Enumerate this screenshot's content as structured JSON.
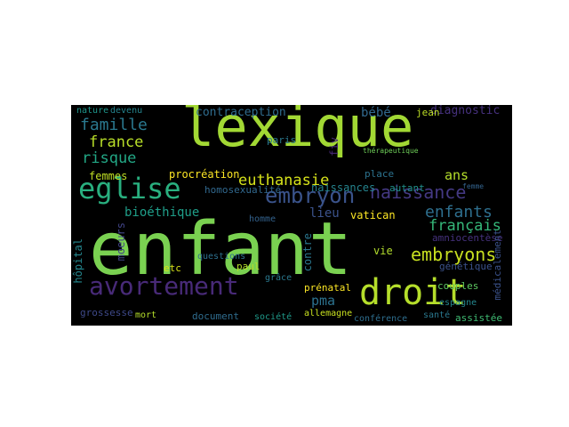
{
  "words": [
    {
      "text": "lexique",
      "color": "#a2d834"
    },
    {
      "text": "enfant",
      "color": "#7ad151"
    },
    {
      "text": "eglise",
      "color": "#29af7f"
    },
    {
      "text": "droit",
      "color": "#b5de2b"
    },
    {
      "text": "avortement",
      "color": "#482a78"
    },
    {
      "text": "embryon",
      "color": "#3a538b"
    },
    {
      "text": "naissance",
      "color": "#443983"
    },
    {
      "text": "euthanasie",
      "color": "#d6e21a"
    },
    {
      "text": "enfants",
      "color": "#2e6f8e"
    },
    {
      "text": "français",
      "color": "#35b779"
    },
    {
      "text": "embryons",
      "color": "#c8e020"
    },
    {
      "text": "famille",
      "color": "#2a788e"
    },
    {
      "text": "france",
      "color": "#b8de29"
    },
    {
      "text": "risque",
      "color": "#22a785"
    },
    {
      "text": "pma",
      "color": "#2c728e"
    },
    {
      "text": "ans",
      "color": "#b5de2b"
    },
    {
      "text": "bébé",
      "color": "#31688e"
    },
    {
      "text": "bioéthique",
      "color": "#1f9e89"
    },
    {
      "text": "contraception",
      "color": "#2f6c8e"
    },
    {
      "text": "diagnostic",
      "color": "#46317e"
    },
    {
      "text": "procréation",
      "color": "#fde725"
    },
    {
      "text": "femmes",
      "color": "#c0df25"
    },
    {
      "text": "homosexualité",
      "color": "#31688e"
    },
    {
      "text": "naissances",
      "color": "#25848e"
    },
    {
      "text": "fiv",
      "color": "#482878"
    },
    {
      "text": "lieu",
      "color": "#3b528b"
    },
    {
      "text": "vatican",
      "color": "#fde725"
    },
    {
      "text": "paris",
      "color": "#2a788e"
    },
    {
      "text": "place",
      "color": "#2c728e"
    },
    {
      "text": "autant",
      "color": "#21918c"
    },
    {
      "text": "jean",
      "color": "#bddf26"
    },
    {
      "text": "nature",
      "color": "#1f968b"
    },
    {
      "text": "devenu",
      "color": "#25848e"
    },
    {
      "text": "hôpital",
      "color": "#24878e"
    },
    {
      "text": "moeurs",
      "color": "#414487"
    },
    {
      "text": "etc",
      "color": "#d8e219"
    },
    {
      "text": "questions",
      "color": "#2d708e"
    },
    {
      "text": "homme",
      "color": "#33628d"
    },
    {
      "text": "paul",
      "color": "#b5de2b"
    },
    {
      "text": "grâce",
      "color": "#2a788e"
    },
    {
      "text": "contre",
      "color": "#2a768e"
    },
    {
      "text": "vie",
      "color": "#b2dd2d"
    },
    {
      "text": "amniocentèse",
      "color": "#46327e"
    },
    {
      "text": "génétique",
      "color": "#3b528b"
    },
    {
      "text": "couples",
      "color": "#5ec962"
    },
    {
      "text": "espagne",
      "color": "#24878e"
    },
    {
      "text": "prénatal",
      "color": "#fde725"
    },
    {
      "text": "allemagne",
      "color": "#c8e020"
    },
    {
      "text": "conférence",
      "color": "#2e6e8e"
    },
    {
      "text": "santé",
      "color": "#2a788e"
    },
    {
      "text": "assistée",
      "color": "#3fbc73"
    },
    {
      "text": "médicalement",
      "color": "#3b528b"
    },
    {
      "text": "grossesse",
      "color": "#3e4989"
    },
    {
      "text": "mort",
      "color": "#b5de2b"
    },
    {
      "text": "document",
      "color": "#2f6c8e"
    },
    {
      "text": "société",
      "color": "#1f9a8a"
    },
    {
      "text": "thérapeutique",
      "color": "#6ece58"
    },
    {
      "text": "femme",
      "color": "#33638d"
    }
  ]
}
